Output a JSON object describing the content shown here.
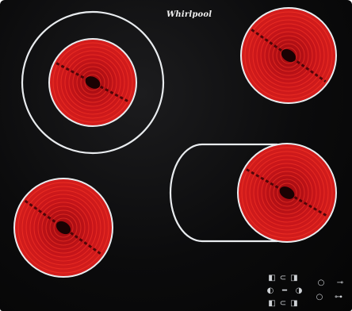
{
  "brand": {
    "logo_text": "Whirlpool"
  },
  "hob": {
    "surface_color": "#0b0b0c",
    "element_color": "#c8151a",
    "element_ring_color": "#ff3a2a",
    "rim_color": "#e9ecef",
    "zones": [
      {
        "id": "rear-left",
        "type": "dual-circle"
      },
      {
        "id": "rear-right",
        "type": "single"
      },
      {
        "id": "front-left",
        "type": "single"
      },
      {
        "id": "front-right",
        "type": "oval-extension"
      }
    ]
  },
  "controls": {
    "icons": [
      "zone-select-icon",
      "zone-select-icon",
      "minus-icon",
      "zone-select-icon",
      "timer-icon",
      "plus-icon",
      "zone-select-icon",
      "lock-icon"
    ]
  }
}
